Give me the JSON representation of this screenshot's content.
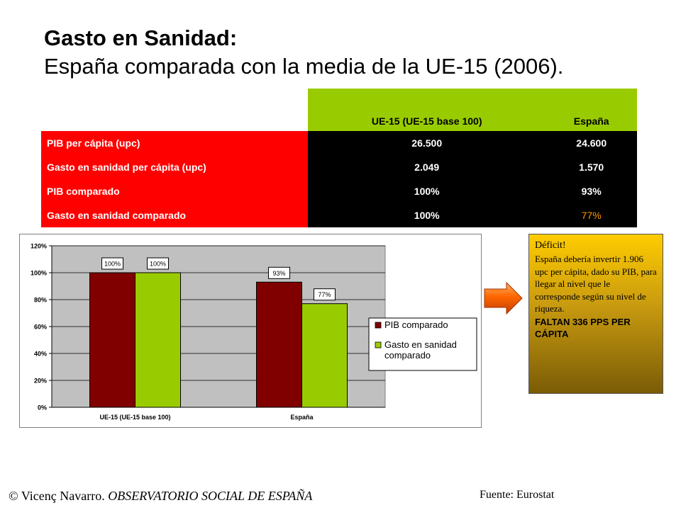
{
  "title": {
    "main": "Gasto en Sanidad:",
    "sub": "España comparada con la media de la UE-15 (2006)."
  },
  "table": {
    "headers": [
      "UE-15 (UE-15 base 100)",
      "España"
    ],
    "rows": [
      {
        "label": "PIB per cápita (upc)",
        "ue": "26.500",
        "es": "24.600"
      },
      {
        "label": "Gasto en sanidad per cápita (upc)",
        "ue": "2.049",
        "es": "1.570"
      },
      {
        "label": "PIB comparado",
        "ue": "100%",
        "es": "93%"
      },
      {
        "label": "Gasto en sanidad comparado",
        "ue": "100%",
        "es": "77%"
      }
    ],
    "highlight_color": "#ff9900"
  },
  "chart_data": {
    "type": "bar",
    "categories": [
      "UE-15 (UE-15 base 100)",
      "España"
    ],
    "series": [
      {
        "name": "PIB comparado",
        "values": [
          100,
          93
        ],
        "labels": [
          "100%",
          "93%"
        ],
        "color": "#800000"
      },
      {
        "name": "Gasto en sanidad comparado",
        "values": [
          100,
          77
        ],
        "labels": [
          "100%",
          "77%"
        ],
        "color": "#99cc00"
      }
    ],
    "yticks": [
      "0%",
      "20%",
      "40%",
      "60%",
      "80%",
      "100%",
      "120%"
    ],
    "ylim": [
      0,
      120
    ],
    "legend": "right",
    "plot_background": "#c0c0c0"
  },
  "deficit": {
    "heading": "Déficit!",
    "body": "España debería invertir 1.906 upc per cápita, dado su PIB, para llegar al nivel que le corresponde según su nivel de riqueza.",
    "footer": "FALTAN 336 PPS PER CÁPITA"
  },
  "footer": {
    "author": "© Vicenç Navarro.",
    "org": "OBSERVATORIO SOCIAL DE ESPAÑA",
    "source": "Fuente: Eurostat"
  },
  "colors": {
    "red": "#ff0000",
    "green": "#99cc00",
    "maroon": "#800000",
    "arrow": "#ff6600"
  }
}
